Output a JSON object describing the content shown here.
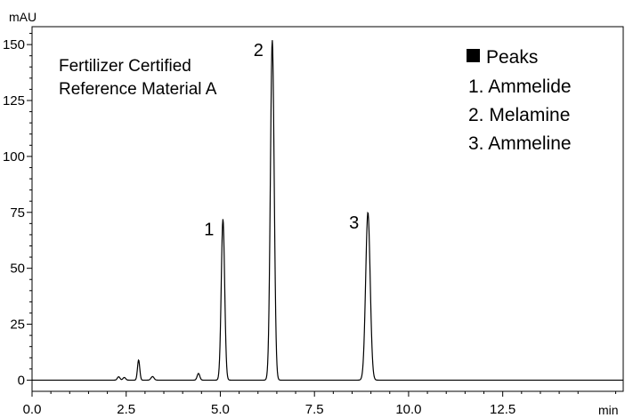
{
  "chart_data": {
    "type": "line",
    "title": "",
    "xlabel": "",
    "ylabel": "",
    "x_unit": "min",
    "y_unit": "mAU",
    "xlim": [
      0,
      15.7
    ],
    "ylim": [
      -5,
      158
    ],
    "x_ticks": [
      0.0,
      2.5,
      5.0,
      7.5,
      10.0,
      12.5
    ],
    "x_tick_labels": [
      "0.0",
      "2.5",
      "5.0",
      "7.5",
      "10.0",
      "12.5"
    ],
    "y_ticks": [
      0,
      25,
      50,
      75,
      100,
      125,
      150
    ],
    "y_tick_labels": [
      "0",
      "25",
      "50",
      "75",
      "100",
      "125",
      "150"
    ],
    "grid": false,
    "annotation": {
      "line1": "Fertilizer Certified",
      "line2": "Reference Material A"
    },
    "legend": {
      "placement": "top-right",
      "title": "Peaks",
      "items": [
        "1. Ammelide",
        "2. Melamine",
        "3. Ammeline"
      ]
    },
    "peak_labels": [
      {
        "label": "1",
        "time": 5.07,
        "height": 72
      },
      {
        "label": "2",
        "time": 6.38,
        "height": 152
      },
      {
        "label": "3",
        "time": 8.92,
        "height": 75
      }
    ],
    "series": [
      {
        "color": "#000000",
        "peaks": [
          {
            "time": 2.3,
            "height": 1.5,
            "width": 0.035
          },
          {
            "time": 2.45,
            "height": 1.2,
            "width": 0.035
          },
          {
            "time": 2.83,
            "height": 9.0,
            "width": 0.03
          },
          {
            "time": 3.2,
            "height": 1.6,
            "width": 0.04
          },
          {
            "time": 4.42,
            "height": 3.0,
            "width": 0.035
          },
          {
            "time": 5.07,
            "height": 72,
            "width": 0.045
          },
          {
            "time": 6.38,
            "height": 152,
            "width": 0.05
          },
          {
            "time": 8.92,
            "height": 75,
            "width": 0.06
          }
        ]
      }
    ]
  }
}
